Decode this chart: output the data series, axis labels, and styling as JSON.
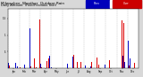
{
  "title": "Milwaukee  Weather  Outdoor Rain",
  "subtitle": "Daily Amount  (Past/Previous Year)",
  "background_color": "#d8d8d8",
  "plot_bg_color": "#ffffff",
  "bar_color_current": "#dd0000",
  "bar_color_previous": "#0000cc",
  "num_points": 365,
  "ylim_max": 1.8,
  "grid_color": "#888888",
  "seed": 42,
  "legend_blue_label": "Prev",
  "legend_red_label": "Curr",
  "month_names": [
    "Jan",
    "Feb",
    "Mar",
    "Apr",
    "May",
    "Jun",
    "Jul",
    "Aug",
    "Sep",
    "Oct",
    "Nov",
    "Dec"
  ],
  "month_starts": [
    0,
    31,
    59,
    90,
    120,
    151,
    181,
    212,
    243,
    273,
    304,
    334
  ],
  "yticks": [
    0.5,
    1.0,
    1.5
  ],
  "ytick_labels": [
    ".5",
    "1",
    "1.5"
  ]
}
